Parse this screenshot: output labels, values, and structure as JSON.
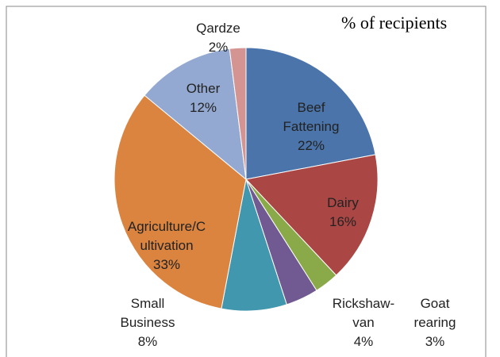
{
  "chart_data": {
    "type": "pie",
    "title": "% of recipients",
    "categories": [
      "Beef Fattening",
      "Dairy",
      "Goat rearing",
      "Rickshaw-van",
      "Small Business",
      "Agriculture/Cultivation",
      "Other",
      "Qardze"
    ],
    "values": [
      22,
      16,
      3,
      4,
      8,
      33,
      12,
      2
    ],
    "value_labels": [
      "22%",
      "16%",
      "3%",
      "4%",
      "8%",
      "33%",
      "12%",
      "2%"
    ],
    "colors": [
      "#4a74aa",
      "#aa4644",
      "#8aaa4a",
      "#715a92",
      "#4197ae",
      "#da8440",
      "#94a9d1",
      "#d49492"
    ]
  }
}
